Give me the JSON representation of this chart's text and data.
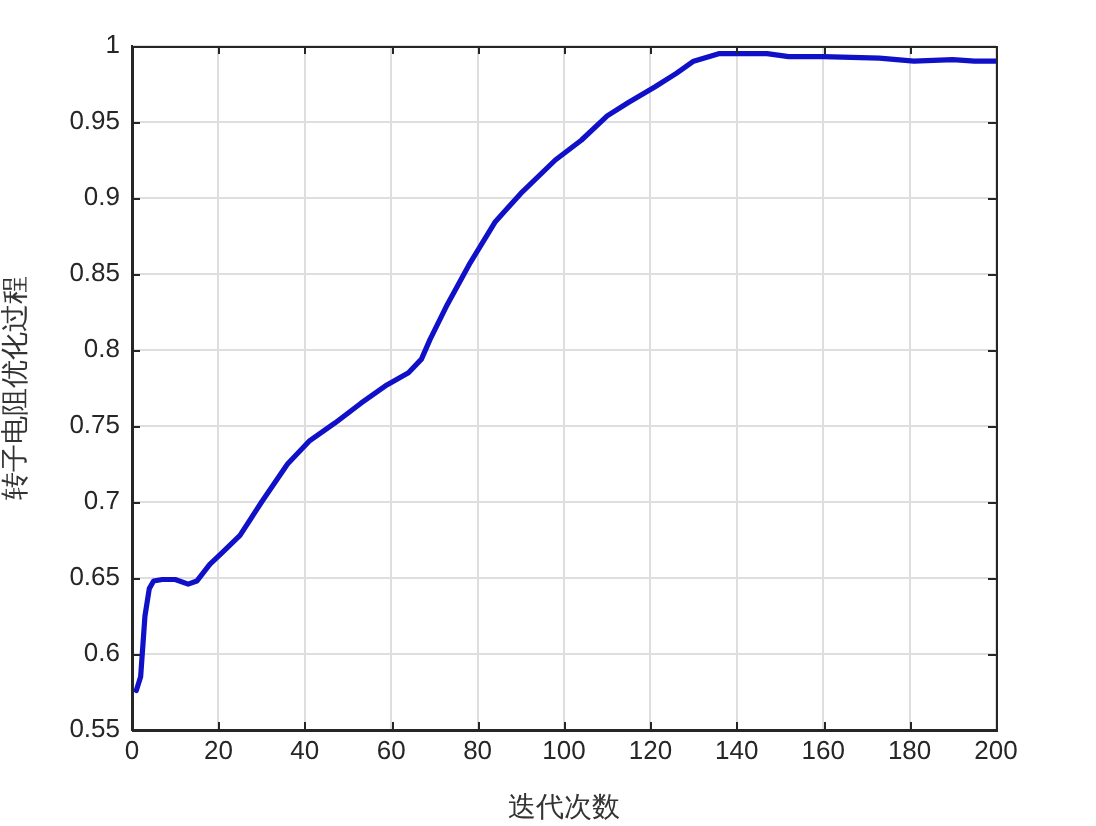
{
  "chart_data": {
    "type": "line",
    "xlabel": "迭代次数",
    "ylabel": "转子电阻优化过程",
    "x": [
      1,
      2,
      3,
      4,
      5,
      7,
      10,
      13,
      15,
      18,
      21,
      25,
      30,
      36,
      41,
      47,
      53,
      59,
      64,
      67,
      69,
      73,
      78,
      84,
      90,
      98,
      104,
      110,
      115,
      121,
      126,
      130,
      136,
      141,
      147,
      152,
      160,
      173,
      181,
      190,
      195,
      200
    ],
    "series": [
      {
        "color": "#1010c8",
        "values": [
          0.576,
          0.585,
          0.625,
          0.643,
          0.648,
          0.649,
          0.649,
          0.646,
          0.648,
          0.659,
          0.667,
          0.678,
          0.7,
          0.725,
          0.74,
          0.752,
          0.765,
          0.777,
          0.785,
          0.794,
          0.807,
          0.83,
          0.856,
          0.884,
          0.903,
          0.925,
          0.938,
          0.954,
          0.963,
          0.973,
          0.982,
          0.99,
          0.995,
          0.995,
          0.995,
          0.993,
          0.993,
          0.992,
          0.99,
          0.991,
          0.99,
          0.99
        ]
      }
    ],
    "xlim": [
      0,
      200
    ],
    "xticks": [
      0,
      20,
      40,
      60,
      80,
      100,
      120,
      140,
      160,
      180,
      200
    ],
    "ylim": [
      0.55,
      1
    ],
    "yticks": [
      0.55,
      0.6,
      0.65,
      0.7,
      0.75,
      0.8,
      0.85,
      0.9,
      0.95,
      1
    ],
    "grid": true,
    "line_style": "solid"
  }
}
